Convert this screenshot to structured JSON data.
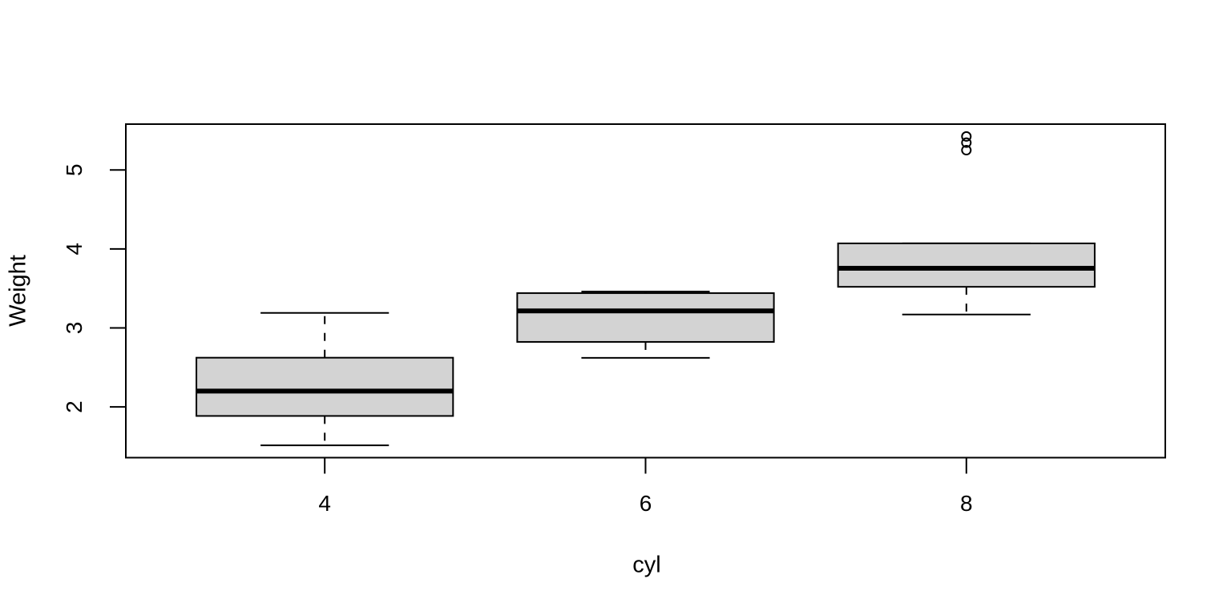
{
  "figure": {
    "background": "#ffffff",
    "foreground": "#000000"
  },
  "chart_data": {
    "type": "boxplot",
    "title": "",
    "xlabel": "cyl",
    "ylabel": "Weight",
    "categories": [
      "4",
      "6",
      "8"
    ],
    "y_ticks": [
      2,
      3,
      4,
      5
    ],
    "y_tick_labels": [
      "2",
      "3",
      "4",
      "5"
    ],
    "xlim": [
      0.38,
      3.62
    ],
    "ylim": [
      1.357,
      5.58
    ],
    "grid": false,
    "legend": null,
    "box_fill": "#d3d3d3",
    "box_stroke": "#000000",
    "series": [
      {
        "category": "4",
        "lower_whisker": 1.513,
        "q1": 1.885,
        "median": 2.2,
        "q3": 2.6225,
        "upper_whisker": 3.19,
        "outliers": []
      },
      {
        "category": "6",
        "lower_whisker": 2.62,
        "q1": 2.8225,
        "median": 3.215,
        "q3": 3.44,
        "upper_whisker": 3.46,
        "outliers": []
      },
      {
        "category": "8",
        "lower_whisker": 3.17,
        "q1": 3.52,
        "median": 3.755,
        "q3": 4.07,
        "upper_whisker": 4.07,
        "outliers": [
          5.25,
          5.345,
          5.424
        ]
      }
    ]
  }
}
